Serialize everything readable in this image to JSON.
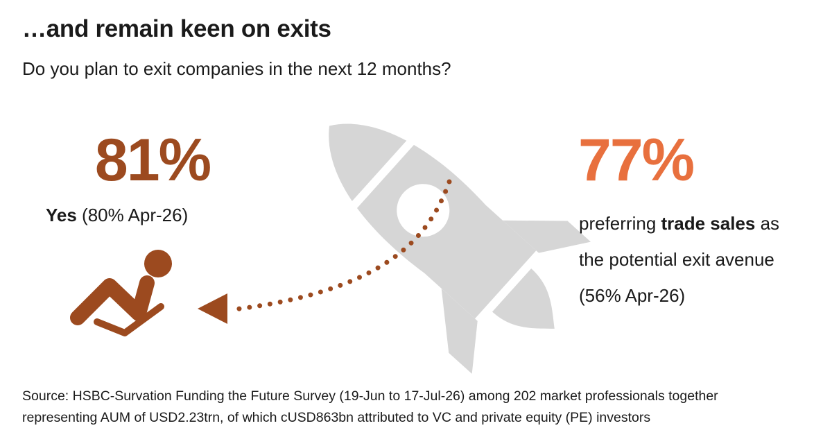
{
  "header": {
    "title": "…and remain keen on exits",
    "subtitle": "Do you plan to exit companies in the next 12 months?"
  },
  "stat_left": {
    "value": "81%",
    "label_strong": "Yes",
    "label_rest": " (80% Apr-26)"
  },
  "stat_right": {
    "value": "77%",
    "line1_pre": "preferring ",
    "line1_strong": "trade sales",
    "line1_post": " as",
    "line2": "the potential exit avenue",
    "line3": "(56% Apr-26)"
  },
  "source": {
    "line1": "Source: HSBC-Survation Funding the Future Survey (19-Jun to 17-Jul-26) among 202 market professionals together",
    "line2": "representing AUM of USD2.23trn, of which cUSD863bn attributed to VC and private equity (PE) investors"
  },
  "colors": {
    "brown": "#9c4a1f",
    "orange": "#e8703e",
    "rocket_grey": "#d6d6d6"
  },
  "icons": {
    "rocket": "rocket-icon",
    "person": "reclining-person-icon",
    "arrow": "dotted-arrow-icon"
  }
}
